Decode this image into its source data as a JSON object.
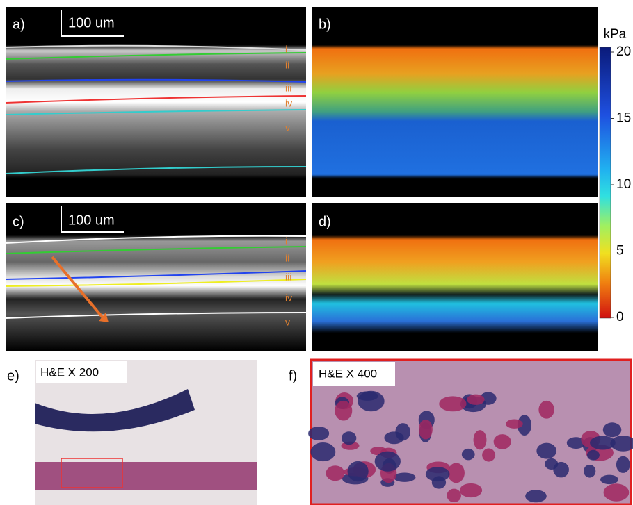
{
  "panels": [
    {
      "label": "a)",
      "scale_bar": "100 um",
      "layers": [
        "i",
        "ii",
        "iii",
        "iv",
        "v"
      ]
    },
    {
      "label": "b)"
    },
    {
      "label": "c)",
      "scale_bar": "100 um",
      "layers": [
        "i",
        "ii",
        "iii",
        "iv",
        "v"
      ]
    },
    {
      "label": "d)"
    },
    {
      "label": "e)",
      "caption": "H&E X 200"
    },
    {
      "label": "f)",
      "caption": "H&E X 400"
    }
  ],
  "colorbar": {
    "unit": "kPa",
    "lim": [
      0,
      20
    ],
    "ticks": [
      20,
      15,
      10,
      5,
      0
    ]
  }
}
